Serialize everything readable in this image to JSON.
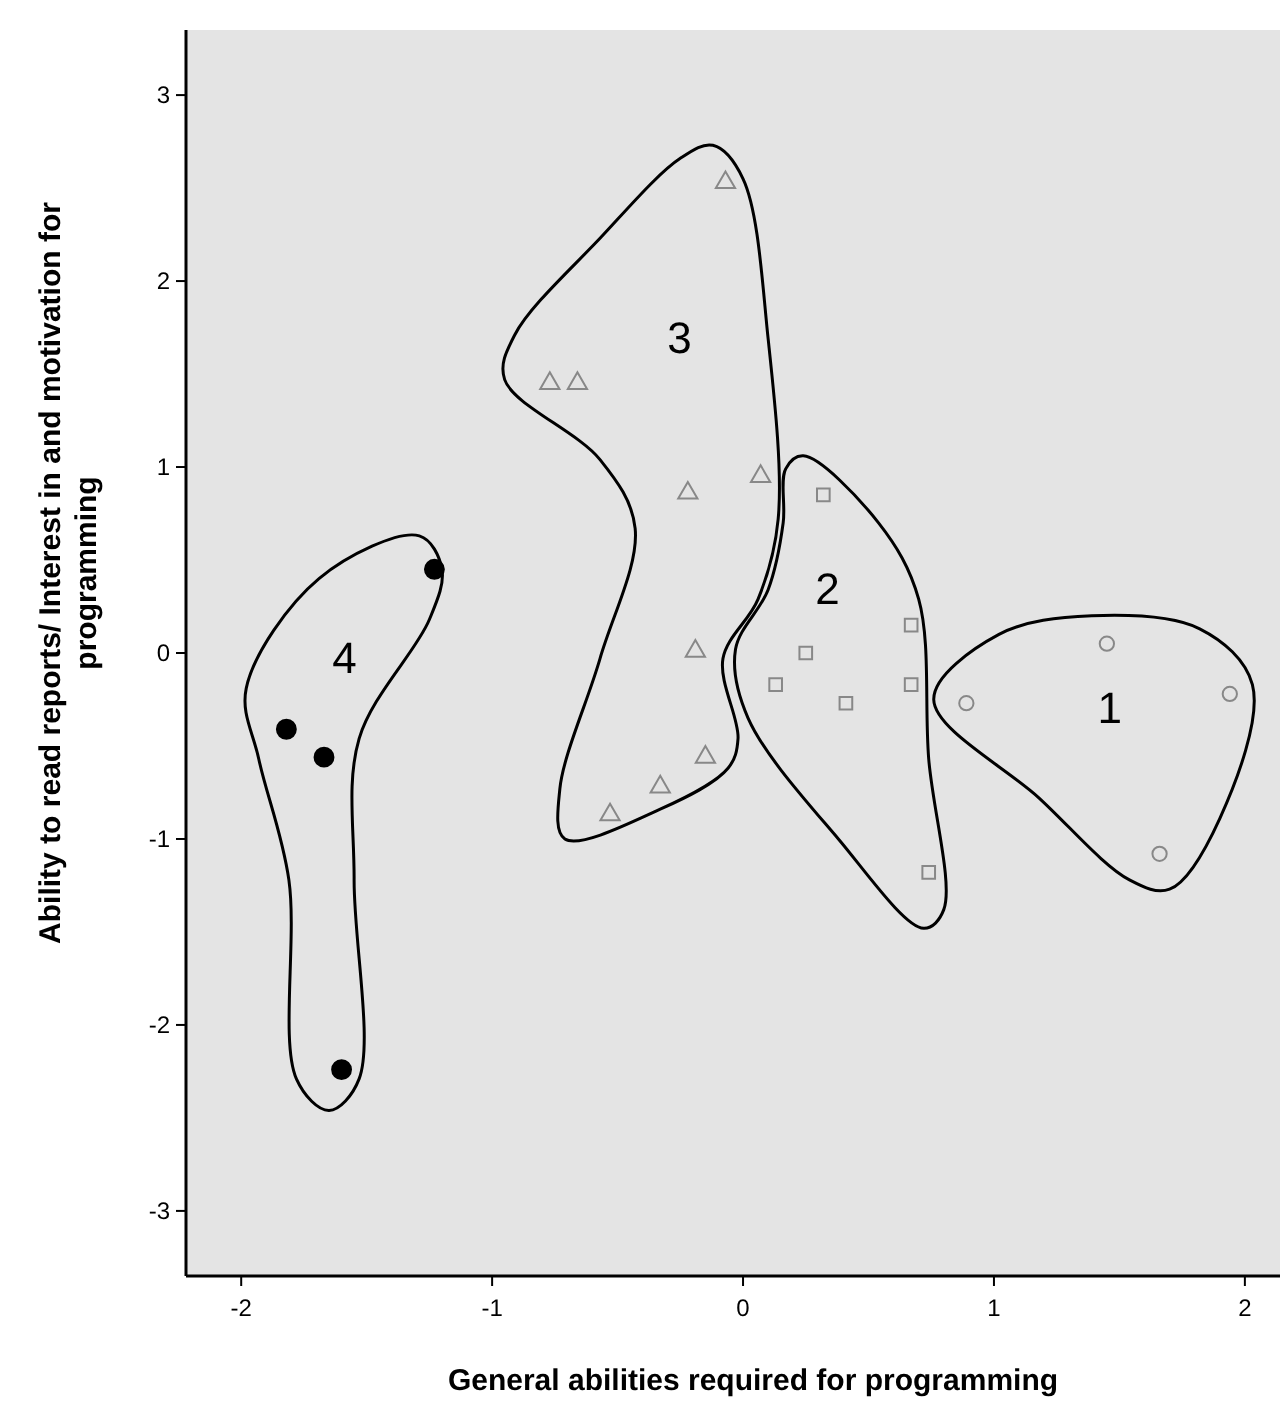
{
  "chart_data": {
    "type": "scatter",
    "xlabel": "General abilities required for programming",
    "ylabel": "Ability to read reports/ Interest in and motivation for programming",
    "xlim": [
      -2.22,
      2.14
    ],
    "ylim": [
      -3.35,
      3.35
    ],
    "xticks": [
      -2,
      -1,
      0,
      1,
      2
    ],
    "yticks": [
      -3,
      -2,
      -1,
      0,
      1,
      2,
      3
    ],
    "grid": false,
    "series": [
      {
        "name": "1",
        "color": "#888888",
        "marker": "circle",
        "x": [
          1.45,
          0.89,
          1.94,
          1.66
        ],
        "values": [
          0.05,
          -0.27,
          -0.22,
          -1.08
        ]
      },
      {
        "name": "2",
        "color": "#888888",
        "marker": "square",
        "x": [
          0.32,
          0.67,
          0.25,
          0.13,
          0.41,
          0.67,
          0.74
        ],
        "values": [
          0.85,
          0.15,
          0.0,
          -0.17,
          -0.27,
          -0.17,
          -1.18
        ]
      },
      {
        "name": "3",
        "color": "#888888",
        "marker": "triangle",
        "x": [
          -0.07,
          -0.77,
          -0.66,
          -0.22,
          0.07,
          -0.19,
          -0.15,
          -0.33,
          -0.53
        ],
        "values": [
          2.53,
          1.45,
          1.45,
          0.86,
          0.95,
          0.01,
          -0.56,
          -0.72,
          -0.87
        ]
      },
      {
        "name": "4",
        "color": "#000000",
        "marker": "circle",
        "x": [
          -1.23,
          -1.82,
          -1.67,
          -1.6
        ],
        "values": [
          0.45,
          -0.41,
          -0.56,
          -2.24
        ]
      }
    ]
  }
}
